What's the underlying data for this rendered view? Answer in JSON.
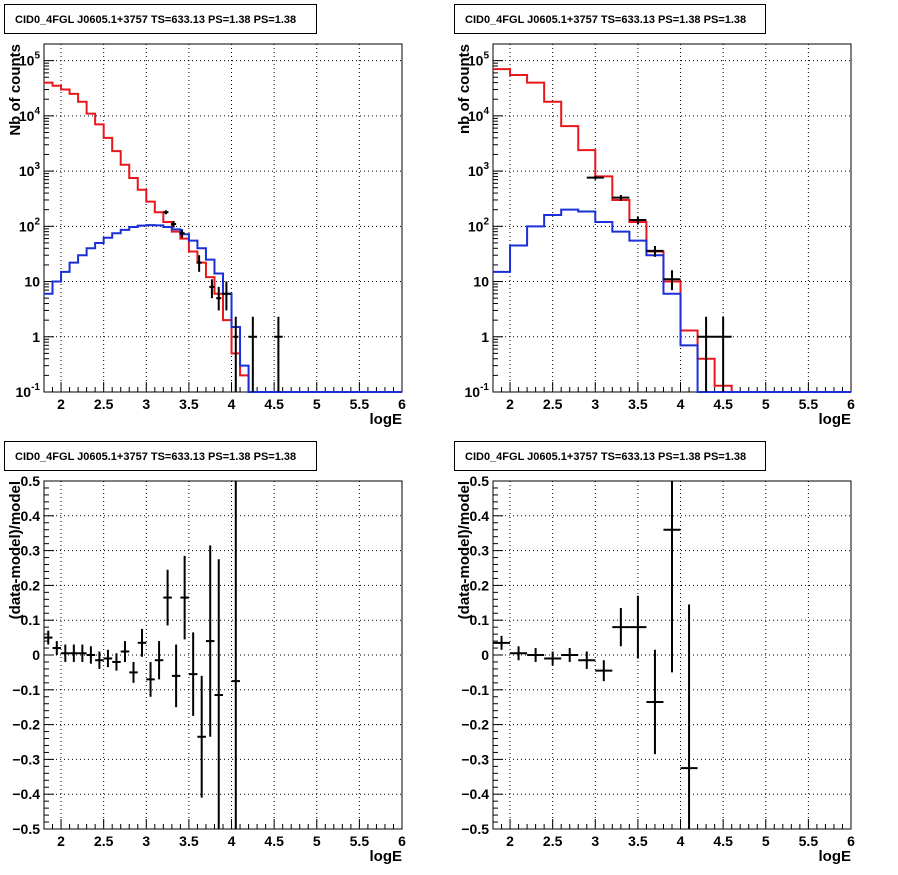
{
  "colors": {
    "data": "#000000",
    "model_total": "#e8171b",
    "model_source": "#1a2fd6",
    "grid": "#000000"
  },
  "panels": [
    {
      "title": "CID0_4FGL J0605.1+3757 TS=633.13 PS=1.38 PS=1.38"
    },
    {
      "title": "CID0_4FGL J0605.1+3757 TS=633.13 PS=1.38 PS=1.38"
    },
    {
      "title": "CID0_4FGL J0605.1+3757 TS=633.13 PS=1.38 PS=1.38"
    },
    {
      "title": "CID0_4FGL J0605.1+3757 TS=633.13 PS=1.38 PS=1.38"
    }
  ],
  "chart_data": [
    {
      "type": "line",
      "title": "CID0_4FGL J0605.1+3757 TS=633.13 PS=1.38 PS=1.38",
      "xlabel": "logE",
      "ylabel": "Nb of counts",
      "xlim": [
        1.8,
        6.0
      ],
      "ylim": [
        0.1,
        200000
      ],
      "yscale": "log",
      "grid": true,
      "xticks": [
        "2",
        "2.5",
        "3",
        "3.5",
        "4",
        "4.5",
        "5",
        "5.5",
        "6"
      ],
      "yticks": [
        "10^-1",
        "1",
        "10",
        "10^2",
        "10^3",
        "10^4",
        "10^5"
      ],
      "bin_edges": [
        1.8,
        1.9,
        2.0,
        2.1,
        2.2,
        2.3,
        2.4,
        2.5,
        2.6,
        2.7,
        2.8,
        2.9,
        3.0,
        3.1,
        3.2,
        3.3,
        3.4,
        3.5,
        3.6,
        3.7,
        3.8,
        3.9,
        4.0,
        4.1,
        4.2,
        4.3,
        4.4,
        4.5,
        4.6,
        4.7,
        4.8,
        4.9,
        5.0,
        5.1,
        5.2,
        5.3,
        5.4,
        5.5,
        5.6,
        5.7,
        5.8,
        5.9,
        6.0
      ],
      "series": [
        {
          "kind": "step",
          "values": [
            40000,
            35000,
            30000,
            25000,
            18000,
            11000,
            7000,
            4000,
            2300,
            1300,
            750,
            460,
            280,
            180,
            120,
            80,
            60,
            35,
            22,
            12,
            6,
            2,
            0.5,
            0.2,
            0.1,
            0.1,
            0.1,
            0.1,
            0.1,
            0.1,
            0.1,
            0.1,
            0.1,
            0.1,
            0.1,
            0.1,
            0.1,
            0.1,
            0.1,
            0.1,
            0.1,
            0.1
          ]
        },
        {
          "kind": "step",
          "values": [
            6,
            10,
            15,
            22,
            30,
            40,
            50,
            62,
            75,
            86,
            97,
            103,
            105,
            104,
            97,
            88,
            72,
            55,
            40,
            25,
            14,
            6,
            1.5,
            0.3,
            0.1,
            0.1,
            0.1,
            0.1,
            0.1,
            0.1,
            0.1,
            0.1,
            0.1,
            0.1,
            0.1,
            0.1,
            0.1,
            0.1,
            0.1,
            0.1,
            0.1,
            0.1
          ]
        },
        {
          "kind": "points",
          "points": [
            {
              "x": 3.23,
              "y": 180,
              "xerr": 0.03,
              "ylo": 165,
              "yhi": 195
            },
            {
              "x": 3.32,
              "y": 110,
              "xerr": 0.03,
              "ylo": 95,
              "yhi": 125
            },
            {
              "x": 3.42,
              "y": 75,
              "xerr": 0.03,
              "ylo": 62,
              "yhi": 88
            },
            {
              "x": 3.62,
              "y": 22,
              "xerr": 0.03,
              "ylo": 15,
              "yhi": 30
            },
            {
              "x": 3.77,
              "y": 8,
              "xerr": 0.03,
              "ylo": 5,
              "yhi": 11
            },
            {
              "x": 3.85,
              "y": 5,
              "xerr": 0.03,
              "ylo": 3,
              "yhi": 8
            },
            {
              "x": 3.94,
              "y": 6,
              "xerr": 0.05,
              "ylo": 3,
              "yhi": 10
            },
            {
              "x": 4.05,
              "y": 1,
              "xerr": 0.03,
              "ylo": 0.1,
              "yhi": 2.3
            },
            {
              "x": 4.25,
              "y": 1,
              "xerr": 0.05,
              "ylo": 0.1,
              "yhi": 2.3
            },
            {
              "x": 4.55,
              "y": 1,
              "xerr": 0.05,
              "ylo": 0.1,
              "yhi": 2.3
            }
          ]
        }
      ]
    },
    {
      "type": "line",
      "title": "CID0_4FGL J0605.1+3757 TS=633.13 PS=1.38 PS=1.38",
      "xlabel": "logE",
      "ylabel": "nb of counts",
      "xlim": [
        1.8,
        6.0
      ],
      "ylim": [
        0.1,
        200000
      ],
      "yscale": "log",
      "grid": true,
      "xticks": [
        "2",
        "2.5",
        "3",
        "3.5",
        "4",
        "4.5",
        "5",
        "5.5",
        "6"
      ],
      "yticks": [
        "10^-1",
        "1",
        "10",
        "10^2",
        "10^3",
        "10^4",
        "10^5"
      ],
      "bin_edges": [
        1.8,
        2.0,
        2.2,
        2.4,
        2.6,
        2.8,
        3.0,
        3.2,
        3.4,
        3.6,
        3.8,
        4.0,
        4.2,
        4.4,
        4.6,
        4.8,
        5.0,
        5.2,
        5.4,
        5.6,
        5.8,
        6.0
      ],
      "series": [
        {
          "kind": "step",
          "values": [
            70000,
            55000,
            40000,
            18000,
            6500,
            2400,
            800,
            300,
            120,
            35,
            10,
            1.3,
            0.4,
            0.13,
            0.1,
            0.1,
            0.1,
            0.1,
            0.1,
            0.1,
            0.1
          ]
        },
        {
          "kind": "step",
          "values": [
            15,
            45,
            100,
            160,
            200,
            185,
            120,
            80,
            55,
            30,
            6,
            0.7,
            0.1,
            0.1,
            0.1,
            0.1,
            0.1,
            0.1,
            0.1,
            0.1,
            0.1
          ]
        },
        {
          "kind": "points",
          "points": [
            {
              "x": 3.0,
              "y": 760,
              "xerr": 0.1,
              "ylo": 700,
              "yhi": 820
            },
            {
              "x": 3.3,
              "y": 330,
              "xerr": 0.1,
              "ylo": 290,
              "yhi": 370
            },
            {
              "x": 3.5,
              "y": 130,
              "xerr": 0.1,
              "ylo": 110,
              "yhi": 150
            },
            {
              "x": 3.7,
              "y": 36,
              "xerr": 0.1,
              "ylo": 28,
              "yhi": 44
            },
            {
              "x": 3.9,
              "y": 11,
              "xerr": 0.1,
              "ylo": 7,
              "yhi": 16
            },
            {
              "x": 4.3,
              "y": 1,
              "xerr": 0.1,
              "ylo": 0.1,
              "yhi": 2.3
            },
            {
              "x": 4.5,
              "y": 1,
              "xerr": 0.1,
              "ylo": 0.1,
              "yhi": 2.3
            }
          ]
        }
      ]
    },
    {
      "type": "scatter",
      "title": "CID0_4FGL J0605.1+3757 TS=633.13 PS=1.38 PS=1.38",
      "xlabel": "logE",
      "ylabel": "(data-model)/model",
      "xlim": [
        1.8,
        6.0
      ],
      "ylim": [
        -0.5,
        0.5
      ],
      "grid": true,
      "xticks": [
        "2",
        "2.5",
        "3",
        "3.5",
        "4",
        "4.5",
        "5",
        "5.5",
        "6"
      ],
      "yticks": [
        "−0.5",
        "−0.4",
        "−0.3",
        "−0.2",
        "−0.1",
        "0",
        "0.1",
        "0.2",
        "0.3",
        "0.4",
        "0.5"
      ],
      "points": [
        {
          "x": 1.85,
          "y": 0.05,
          "xerr": 0.05,
          "yerr": 0.02
        },
        {
          "x": 1.95,
          "y": 0.02,
          "xerr": 0.05,
          "yerr": 0.02
        },
        {
          "x": 2.05,
          "y": 0.005,
          "xerr": 0.05,
          "yerr": 0.025
        },
        {
          "x": 2.15,
          "y": 0.005,
          "xerr": 0.05,
          "yerr": 0.025
        },
        {
          "x": 2.25,
          "y": 0.005,
          "xerr": 0.05,
          "yerr": 0.025
        },
        {
          "x": 2.35,
          "y": 0.0,
          "xerr": 0.05,
          "yerr": 0.025
        },
        {
          "x": 2.45,
          "y": -0.015,
          "xerr": 0.05,
          "yerr": 0.025
        },
        {
          "x": 2.55,
          "y": -0.01,
          "xerr": 0.05,
          "yerr": 0.025
        },
        {
          "x": 2.65,
          "y": -0.02,
          "xerr": 0.05,
          "yerr": 0.025
        },
        {
          "x": 2.75,
          "y": 0.01,
          "xerr": 0.05,
          "yerr": 0.03
        },
        {
          "x": 2.85,
          "y": -0.05,
          "xerr": 0.05,
          "yerr": 0.03
        },
        {
          "x": 2.95,
          "y": 0.035,
          "xerr": 0.05,
          "yerr": 0.04
        },
        {
          "x": 3.05,
          "y": -0.07,
          "xerr": 0.05,
          "yerr": 0.05
        },
        {
          "x": 3.15,
          "y": -0.015,
          "xerr": 0.05,
          "yerr": 0.055
        },
        {
          "x": 3.25,
          "y": 0.165,
          "xerr": 0.05,
          "yerr": 0.08
        },
        {
          "x": 3.35,
          "y": -0.06,
          "xerr": 0.05,
          "yerr": 0.09
        },
        {
          "x": 3.45,
          "y": 0.165,
          "xerr": 0.05,
          "yerr": 0.12
        },
        {
          "x": 3.55,
          "y": -0.055,
          "xerr": 0.05,
          "yerr": 0.12
        },
        {
          "x": 3.65,
          "y": -0.235,
          "xerr": 0.05,
          "yerr": 0.175
        },
        {
          "x": 3.75,
          "y": 0.04,
          "xerr": 0.05,
          "yerr": 0.275
        },
        {
          "x": 3.85,
          "y": -0.115,
          "xerr": 0.05,
          "yerr": 0.39
        },
        {
          "x": 4.05,
          "y": -0.075,
          "xerr": 0.05,
          "yerr": 0.58
        }
      ]
    },
    {
      "type": "scatter",
      "title": "CID0_4FGL J0605.1+3757 TS=633.13 PS=1.38 PS=1.38",
      "xlabel": "logE",
      "ylabel": "(data-model)/model",
      "xlim": [
        1.8,
        6.0
      ],
      "ylim": [
        -0.5,
        0.5
      ],
      "grid": true,
      "xticks": [
        "2",
        "2.5",
        "3",
        "3.5",
        "4",
        "4.5",
        "5",
        "5.5",
        "6"
      ],
      "yticks": [
        "−0.5",
        "−0.4",
        "−0.3",
        "−0.2",
        "−0.1",
        "0",
        "0.1",
        "0.2",
        "0.3",
        "0.4",
        "0.5"
      ],
      "points": [
        {
          "x": 1.9,
          "y": 0.035,
          "xerr": 0.1,
          "yerr": 0.02
        },
        {
          "x": 2.1,
          "y": 0.005,
          "xerr": 0.1,
          "yerr": 0.02
        },
        {
          "x": 2.3,
          "y": 0.0,
          "xerr": 0.1,
          "yerr": 0.02
        },
        {
          "x": 2.5,
          "y": -0.01,
          "xerr": 0.1,
          "yerr": 0.02
        },
        {
          "x": 2.7,
          "y": 0.0,
          "xerr": 0.1,
          "yerr": 0.02
        },
        {
          "x": 2.9,
          "y": -0.015,
          "xerr": 0.1,
          "yerr": 0.025
        },
        {
          "x": 3.1,
          "y": -0.045,
          "xerr": 0.1,
          "yerr": 0.03
        },
        {
          "x": 3.3,
          "y": 0.08,
          "xerr": 0.1,
          "yerr": 0.055
        },
        {
          "x": 3.5,
          "y": 0.08,
          "xerr": 0.1,
          "yerr": 0.09
        },
        {
          "x": 3.7,
          "y": -0.135,
          "xerr": 0.1,
          "yerr": 0.15
        },
        {
          "x": 3.9,
          "y": 0.36,
          "xerr": 0.1,
          "yerr": 0.41
        },
        {
          "x": 4.1,
          "y": -0.325,
          "xerr": 0.1,
          "yerr": 0.47
        }
      ]
    }
  ]
}
